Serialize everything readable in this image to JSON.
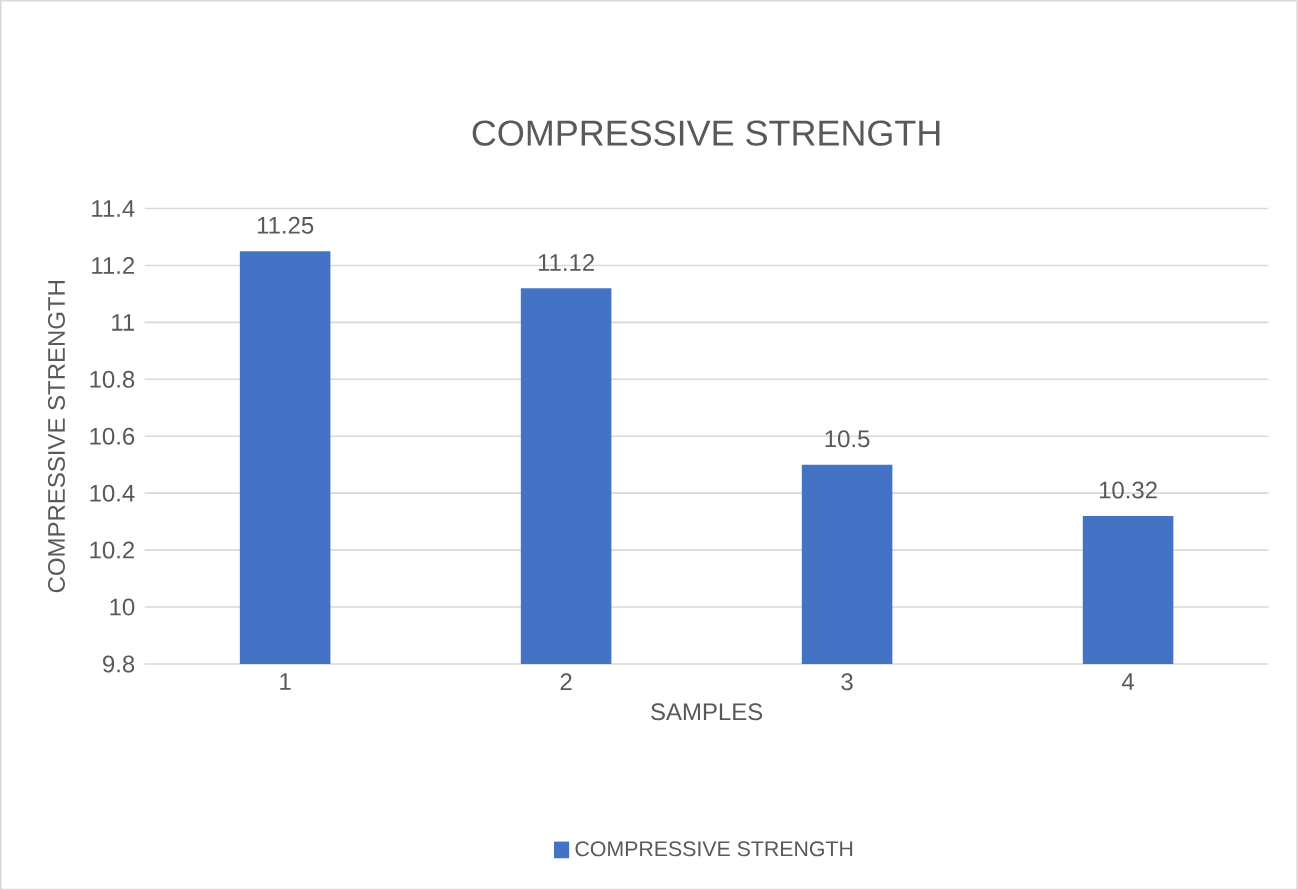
{
  "chart_data": {
    "type": "bar",
    "title": "COMPRESSIVE STRENGTH",
    "xlabel": "SAMPLES",
    "ylabel": "COMPRESSIVE STRENGTH",
    "categories": [
      "1",
      "2",
      "3",
      "4"
    ],
    "series": [
      {
        "name": "COMPRESSIVE STRENGTH",
        "color": "#4472c4",
        "values": [
          11.25,
          11.12,
          10.5,
          10.32
        ]
      }
    ],
    "ylim": [
      9.8,
      11.4
    ],
    "yticks": [
      9.8,
      10,
      10.2,
      10.4,
      10.6,
      10.8,
      11,
      11.2,
      11.4
    ],
    "grid": "y",
    "legend": "bottom",
    "data_labels": true
  }
}
